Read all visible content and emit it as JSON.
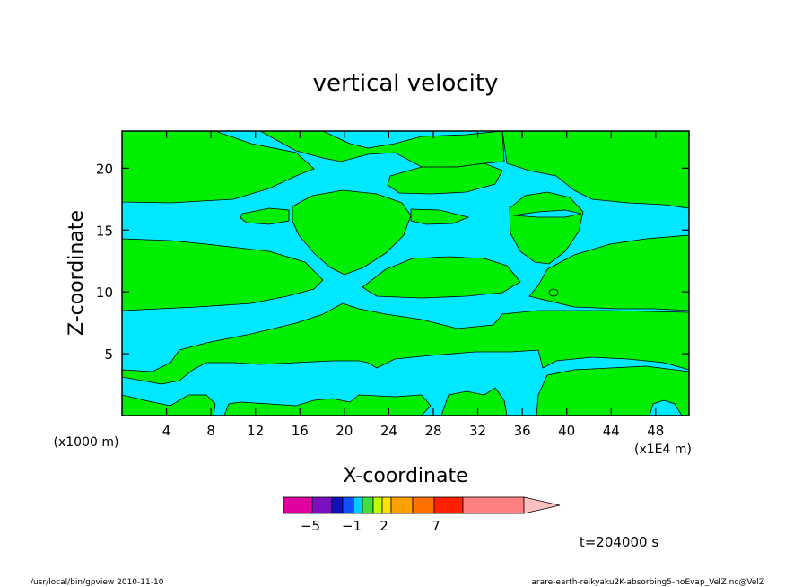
{
  "chart_data": {
    "type": "heatmap",
    "title": "vertical velocity",
    "xlabel": "X-coordinate",
    "ylabel": "Z-coordinate",
    "x_unit_left": "(x1000 m)",
    "x_unit_right": "(x1E4 m)",
    "xlim": [
      0,
      51
    ],
    "ylim": [
      0,
      23
    ],
    "x_ticks": [
      4,
      8,
      12,
      16,
      20,
      24,
      28,
      32,
      36,
      40,
      44,
      48
    ],
    "y_ticks": [
      5,
      10,
      15,
      20
    ],
    "time_label": "t=204000 s",
    "colorbar": {
      "labels": [
        {
          "text": "−5",
          "value": -5
        },
        {
          "text": "−1",
          "value": -1
        },
        {
          "text": "2",
          "value": 2
        },
        {
          "text": "7",
          "value": 7
        }
      ],
      "colors": [
        "#e000a0",
        "#7a10c0",
        "#1010c0",
        "#1050ff",
        "#00d0ff",
        "#40e040",
        "#c0ff00",
        "#ffe000",
        "#ffa000",
        "#ff7000",
        "#ff2000",
        "#ff8080",
        "#ffc0c0"
      ]
    },
    "fill_colors": {
      "positive": "#00ee00",
      "near_zero": "#00e8ff"
    },
    "grid": false
  },
  "footer": {
    "left": "/usr/local/bin/gpview  2010-11-10",
    "right": "arare-earth-reikyaku2K-absorbing5-noEvap_VelZ.nc@VelZ"
  }
}
